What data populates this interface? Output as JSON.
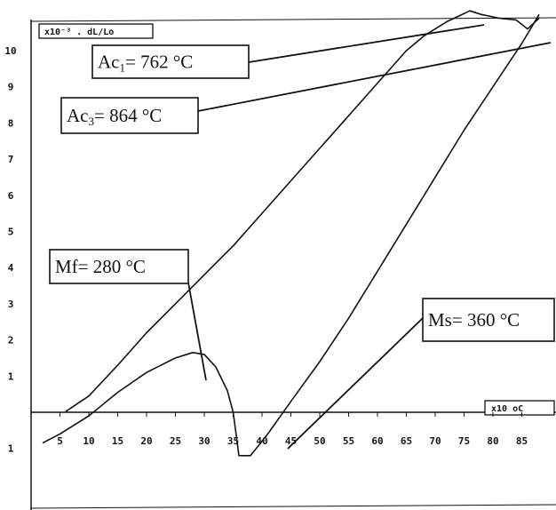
{
  "chart_data": {
    "type": "line",
    "title": "",
    "ylabel": "x10⁻³ . dL/Lo",
    "xlabel": "x10 oC",
    "xlim": [
      0,
      90
    ],
    "ylim": [
      -1.5,
      11
    ],
    "x_ticks": [
      "5",
      "10",
      "15",
      "20",
      "25",
      "30",
      "35",
      "40",
      "45",
      "50",
      "55",
      "60",
      "65",
      "70",
      "75",
      "80",
      "85"
    ],
    "y_ticks": [
      "10",
      "9",
      "8",
      "7",
      "6",
      "5",
      "4",
      "3",
      "2",
      "1",
      "1"
    ],
    "series": [
      {
        "x": [
          6,
          10,
          15,
          20,
          25,
          30,
          35,
          40,
          45,
          50,
          55,
          60,
          65,
          68,
          72,
          76,
          78,
          81,
          84,
          86,
          88
        ],
        "y": [
          0.02,
          0.45,
          1.3,
          2.2,
          3.0,
          3.8,
          4.6,
          5.5,
          6.4,
          7.3,
          8.2,
          9.1,
          10.0,
          10.4,
          10.8,
          11.1,
          11.0,
          10.9,
          10.85,
          10.6,
          10.9
        ]
      },
      {
        "x": [
          2,
          5,
          10,
          15,
          20,
          25,
          28,
          30,
          32,
          34,
          35,
          35.5,
          36,
          37,
          38,
          39,
          41,
          45,
          50,
          55,
          60,
          65,
          70,
          75,
          80,
          85,
          88
        ],
        "y": [
          -0.85,
          -0.6,
          -0.1,
          0.55,
          1.1,
          1.5,
          1.65,
          1.6,
          1.25,
          0.6,
          0.0,
          -0.6,
          -1.2,
          -1.2,
          -1.2,
          -1.0,
          -0.6,
          0.3,
          1.4,
          2.6,
          3.9,
          5.2,
          6.5,
          7.8,
          9.0,
          10.2,
          11.0
        ]
      }
    ],
    "annotations": [
      {
        "main": "Ac",
        "sub": "1",
        "rest": "= 762 °C"
      },
      {
        "main": "Ac",
        "sub": "3",
        "rest": "= 864 °C"
      },
      {
        "main": "Mf= 280 °C",
        "sub": "",
        "rest": ""
      },
      {
        "main": "Ms= 360 °C",
        "sub": "",
        "rest": ""
      }
    ],
    "grid": false,
    "legend": "none"
  }
}
